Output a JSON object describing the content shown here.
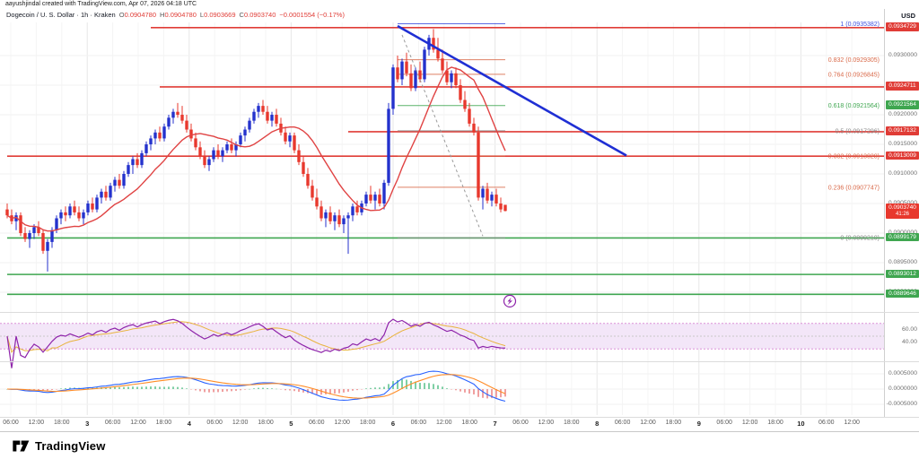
{
  "attribution": "aayushjindal created with TradingView.com, Apr 07, 2026 04:18 UTC",
  "legend": {
    "title": "Dogecoin / U. S. Dollar · 1h · Kraken",
    "ohlc": [
      {
        "k": "O",
        "v": "0.0904780"
      },
      {
        "k": "H",
        "v": "0.0904780"
      },
      {
        "k": "L",
        "v": "0.0903669"
      },
      {
        "k": "C",
        "v": "0.0903740"
      }
    ],
    "change": "−0.0001554 (−0.17%)"
  },
  "scale": {
    "currency": "USD"
  },
  "footer": {
    "brand": "TradingView"
  },
  "colors": {
    "up": "#2432cd",
    "down": "#e8382d",
    "ma": "#e04343",
    "trendline": "#1f2fd4",
    "resistance": "#e03c36",
    "support": "#3fa650",
    "rsi": "#8e24aa",
    "rsi_ma": "#e8b33c",
    "rsi_band_fill": "#f3e6f8",
    "rsi_band_edge": "#d069c8",
    "macd": "#2962ff",
    "macd_signal": "#ff8c26",
    "hist_up": "#7fcfa5",
    "hist_down": "#f0a0a0",
    "marker": "#8e24aa"
  },
  "chart_data": {
    "type": "candlestick",
    "title": "Dogecoin / U. S. Dollar",
    "interval": "1h",
    "exchange": "Kraken",
    "ohlc_format": [
      "open",
      "high",
      "low",
      "close"
    ],
    "candles": [
      [
        0.0904,
        0.0905,
        0.09025,
        0.0903
      ],
      [
        0.0903,
        0.0904,
        0.09015,
        0.0902
      ],
      [
        0.0902,
        0.09035,
        0.09005,
        0.0903
      ],
      [
        0.0903,
        0.09035,
        0.08995,
        0.09
      ],
      [
        0.09,
        0.0901,
        0.08985,
        0.0899
      ],
      [
        0.0899,
        0.09005,
        0.08975,
        0.09
      ],
      [
        0.09,
        0.09015,
        0.0899,
        0.0901
      ],
      [
        0.0901,
        0.0902,
        0.08995,
        0.09
      ],
      [
        0.09,
        0.09005,
        0.08965,
        0.0897
      ],
      [
        0.0897,
        0.0899,
        0.08935,
        0.08985
      ],
      [
        0.08985,
        0.0901,
        0.08975,
        0.09005
      ],
      [
        0.09005,
        0.0903,
        0.09,
        0.09025
      ],
      [
        0.09025,
        0.0904,
        0.09015,
        0.09035
      ],
      [
        0.09035,
        0.09045,
        0.0902,
        0.0903
      ],
      [
        0.0903,
        0.0905,
        0.09025,
        0.09045
      ],
      [
        0.09045,
        0.09055,
        0.0903,
        0.09035
      ],
      [
        0.09035,
        0.09045,
        0.0902,
        0.09025
      ],
      [
        0.09025,
        0.0904,
        0.09015,
        0.09035
      ],
      [
        0.09035,
        0.09055,
        0.0903,
        0.0905
      ],
      [
        0.0905,
        0.0906,
        0.09035,
        0.0904
      ],
      [
        0.0904,
        0.09065,
        0.09035,
        0.0906
      ],
      [
        0.0906,
        0.09075,
        0.0905,
        0.0907
      ],
      [
        0.0907,
        0.0908,
        0.09055,
        0.0906
      ],
      [
        0.0906,
        0.09085,
        0.09055,
        0.0908
      ],
      [
        0.0908,
        0.09095,
        0.0907,
        0.0909
      ],
      [
        0.0909,
        0.091,
        0.09075,
        0.0908
      ],
      [
        0.0908,
        0.09105,
        0.09075,
        0.091
      ],
      [
        0.091,
        0.0912,
        0.09095,
        0.09115
      ],
      [
        0.09115,
        0.0913,
        0.091,
        0.09125
      ],
      [
        0.09125,
        0.09135,
        0.0911,
        0.09115
      ],
      [
        0.09115,
        0.0914,
        0.0911,
        0.09135
      ],
      [
        0.09135,
        0.09155,
        0.0913,
        0.0915
      ],
      [
        0.0915,
        0.09165,
        0.0914,
        0.0916
      ],
      [
        0.0916,
        0.09175,
        0.0915,
        0.0917
      ],
      [
        0.0917,
        0.0918,
        0.09155,
        0.0916
      ],
      [
        0.0916,
        0.09185,
        0.09155,
        0.0918
      ],
      [
        0.0918,
        0.092,
        0.09175,
        0.09195
      ],
      [
        0.09195,
        0.0921,
        0.09185,
        0.09205
      ],
      [
        0.09205,
        0.0922,
        0.09195,
        0.092
      ],
      [
        0.092,
        0.09215,
        0.09185,
        0.0919
      ],
      [
        0.0919,
        0.092,
        0.0917,
        0.09175
      ],
      [
        0.09175,
        0.09185,
        0.09155,
        0.0916
      ],
      [
        0.0916,
        0.0917,
        0.0914,
        0.09145
      ],
      [
        0.09145,
        0.09155,
        0.09125,
        0.0913
      ],
      [
        0.0913,
        0.0914,
        0.0911,
        0.09115
      ],
      [
        0.09115,
        0.0913,
        0.09105,
        0.09125
      ],
      [
        0.09125,
        0.09145,
        0.0912,
        0.0914
      ],
      [
        0.0914,
        0.0915,
        0.09125,
        0.0913
      ],
      [
        0.0913,
        0.09145,
        0.0912,
        0.0914
      ],
      [
        0.0914,
        0.09155,
        0.09135,
        0.0915
      ],
      [
        0.0915,
        0.0916,
        0.09135,
        0.0914
      ],
      [
        0.0914,
        0.09155,
        0.0913,
        0.0915
      ],
      [
        0.0915,
        0.0917,
        0.09145,
        0.09165
      ],
      [
        0.09165,
        0.0918,
        0.09155,
        0.09175
      ],
      [
        0.09175,
        0.09195,
        0.0917,
        0.0919
      ],
      [
        0.0919,
        0.0921,
        0.09185,
        0.09205
      ],
      [
        0.09205,
        0.0922,
        0.09195,
        0.09215
      ],
      [
        0.09215,
        0.09225,
        0.092,
        0.09205
      ],
      [
        0.09205,
        0.09215,
        0.09185,
        0.0919
      ],
      [
        0.0919,
        0.09205,
        0.0918,
        0.092
      ],
      [
        0.092,
        0.0921,
        0.0918,
        0.09185
      ],
      [
        0.09185,
        0.09195,
        0.09165,
        0.0917
      ],
      [
        0.0917,
        0.0918,
        0.0915,
        0.09155
      ],
      [
        0.09155,
        0.0917,
        0.09145,
        0.09165
      ],
      [
        0.09165,
        0.0917,
        0.09135,
        0.0914
      ],
      [
        0.0914,
        0.0915,
        0.09115,
        0.0912
      ],
      [
        0.0912,
        0.0913,
        0.09095,
        0.091
      ],
      [
        0.091,
        0.0911,
        0.09075,
        0.0908
      ],
      [
        0.0908,
        0.0909,
        0.09055,
        0.0906
      ],
      [
        0.0906,
        0.09075,
        0.0904,
        0.09045
      ],
      [
        0.09045,
        0.09055,
        0.0902,
        0.09025
      ],
      [
        0.09025,
        0.0904,
        0.0901,
        0.09035
      ],
      [
        0.09035,
        0.09045,
        0.09015,
        0.0902
      ],
      [
        0.0902,
        0.09035,
        0.09005,
        0.0903
      ],
      [
        0.0903,
        0.0904,
        0.0901,
        0.09015
      ],
      [
        0.09015,
        0.0903,
        0.09,
        0.09025
      ],
      [
        0.09025,
        0.09035,
        0.08965,
        0.0903
      ],
      [
        0.0903,
        0.0905,
        0.0902,
        0.09045
      ],
      [
        0.09045,
        0.09055,
        0.0903,
        0.09035
      ],
      [
        0.09035,
        0.09055,
        0.0903,
        0.0905
      ],
      [
        0.0905,
        0.0907,
        0.09045,
        0.09065
      ],
      [
        0.09065,
        0.0908,
        0.0905,
        0.09055
      ],
      [
        0.09055,
        0.0907,
        0.0904,
        0.09065
      ],
      [
        0.09065,
        0.09075,
        0.09045,
        0.0905
      ],
      [
        0.0905,
        0.0909,
        0.0904,
        0.09085
      ],
      [
        0.09085,
        0.0922,
        0.0908,
        0.0921
      ],
      [
        0.0921,
        0.09285,
        0.092,
        0.0928
      ],
      [
        0.0928,
        0.093,
        0.09255,
        0.0926
      ],
      [
        0.0926,
        0.09295,
        0.0925,
        0.0929
      ],
      [
        0.0929,
        0.09305,
        0.09265,
        0.0927
      ],
      [
        0.0927,
        0.09285,
        0.0924,
        0.09245
      ],
      [
        0.09245,
        0.0928,
        0.0924,
        0.09275
      ],
      [
        0.09275,
        0.0929,
        0.09255,
        0.0926
      ],
      [
        0.0926,
        0.09315,
        0.09255,
        0.0931
      ],
      [
        0.0931,
        0.09335,
        0.093,
        0.0933
      ],
      [
        0.0933,
        0.09345,
        0.09305,
        0.0931
      ],
      [
        0.0931,
        0.0933,
        0.0929,
        0.09295
      ],
      [
        0.09295,
        0.0931,
        0.0927,
        0.09275
      ],
      [
        0.09275,
        0.0929,
        0.0925,
        0.09255
      ],
      [
        0.09255,
        0.09275,
        0.09245,
        0.0927
      ],
      [
        0.0927,
        0.0928,
        0.09245,
        0.0925
      ],
      [
        0.0925,
        0.0926,
        0.0922,
        0.09225
      ],
      [
        0.09225,
        0.0924,
        0.09205,
        0.0921
      ],
      [
        0.0921,
        0.0922,
        0.0918,
        0.09185
      ],
      [
        0.09185,
        0.09195,
        0.09165,
        0.0917
      ],
      [
        0.0917,
        0.0918,
        0.09055,
        0.0906
      ],
      [
        0.0906,
        0.0908,
        0.0904,
        0.09075
      ],
      [
        0.09075,
        0.09085,
        0.0905,
        0.09055
      ],
      [
        0.09055,
        0.0907,
        0.09045,
        0.09065
      ],
      [
        0.09065,
        0.09075,
        0.09045,
        0.0905
      ],
      [
        0.0905,
        0.0906,
        0.09035,
        0.0904
      ],
      [
        0.090478,
        0.090478,
        0.0903669,
        0.090374
      ]
    ],
    "price_axis": {
      "min": 0.088712,
      "max": 0.093561,
      "ticks": [
        "0.0930000",
        "0.0925000",
        "0.0920000",
        "0.0915000",
        "0.0910000",
        "0.0905000",
        "0.0900000",
        "0.0895000",
        "0.0890000"
      ]
    },
    "time_axis_labels": [
      "06:00",
      "12:00",
      "18:00",
      "3",
      "06:00",
      "12:00",
      "18:00",
      "4",
      "06:00",
      "12:00",
      "18:00",
      "5",
      "06:00",
      "12:00",
      "18:00",
      "6",
      "06:00",
      "12:00",
      "18:00",
      "7",
      "06:00",
      "12:00",
      "18:00",
      "8",
      "06:00",
      "12:00",
      "18:00",
      "9",
      "06:00",
      "12:00",
      "18:00",
      "10",
      "06:00",
      "12:00"
    ],
    "overlays": {
      "ma_period": 14,
      "fib_range": [
        87,
        111
      ],
      "fib_levels": [
        {
          "label": "1 (0.0935382)",
          "value": 0.0935382,
          "color": "#3f51e0"
        },
        {
          "label": "0.832 (0.0929305)",
          "value": 0.0929305,
          "color": "#d96a4a"
        },
        {
          "label": "0.764 (0.0926845)",
          "value": 0.0926845,
          "color": "#d96a4a"
        },
        {
          "label": "0.618 (0.0921564)",
          "value": 0.0921564,
          "color": "#3fa650"
        },
        {
          "label": "0.5 (0.0917296)",
          "value": 0.0917296,
          "color": "#8a8a8a"
        },
        {
          "label": "0.382 (0.0913028)",
          "value": 0.0913028,
          "color": "#d96a4a"
        },
        {
          "label": "0.236 (0.0907747)",
          "value": 0.0907747,
          "color": "#d96a4a"
        },
        {
          "label": "0 (0.0899210)",
          "value": 0.089921,
          "color": "#8a8a8a"
        }
      ],
      "hlines": [
        {
          "price": 0.0934729,
          "color": "#e03c36",
          "from_index": 32
        },
        {
          "price": 0.0924711,
          "color": "#e03c36",
          "from_index": 34
        },
        {
          "price": 0.0917132,
          "color": "#e03c36",
          "from_index": 76
        },
        {
          "price": 0.0913009,
          "color": "#e03c36",
          "from_index": 0
        },
        {
          "price": 0.0899179,
          "color": "#3fa650",
          "from_index": 0
        },
        {
          "price": 0.0893012,
          "color": "#3fa650",
          "from_index": 0
        },
        {
          "price": 0.0889646,
          "color": "#3fa650",
          "from_index": 0
        }
      ],
      "trendline": {
        "from_index": 87,
        "from_price": 0.0935,
        "to_index": 138,
        "to_price": 0.09131
      },
      "dashed_guide": {
        "from_index": 88,
        "from_price": 0.09335,
        "to_index": 106,
        "to_price": 0.08995
      },
      "marker": {
        "index": 112,
        "price": 0.08885,
        "icon": "lightning-icon"
      }
    },
    "indicators": {
      "rsi": {
        "period": 14,
        "band": [
          30,
          70
        ],
        "range": [
          15,
          85
        ],
        "ticks": [
          {
            "label": "60.00",
            "value": 60
          },
          {
            "label": "40.00",
            "value": 40
          }
        ]
      },
      "macd": {
        "fast": 12,
        "slow": 26,
        "signal": 9,
        "range": [
          -0.00085,
          0.00085
        ],
        "ticks": [
          {
            "label": "0.0005000",
            "value": 0.0005
          },
          {
            "label": "0.0000000",
            "value": 0
          },
          {
            "label": "-0.0005000",
            "value": -0.0005
          }
        ]
      }
    },
    "price_tags": [
      {
        "text": "0.0934729",
        "price": 0.0934729,
        "color": "#e03c36"
      },
      {
        "text": "0.0924711",
        "price": 0.0924711,
        "color": "#e03c36"
      },
      {
        "text": "0.0921564",
        "price": 0.0921564,
        "color": "#3fa650"
      },
      {
        "text": "0.0917132",
        "price": 0.0917132,
        "color": "#e03c36"
      },
      {
        "text": "0.0913009",
        "price": 0.0913009,
        "color": "#e03c36"
      },
      {
        "text": "0.0903740",
        "price": 0.090374,
        "color": "#e8382d",
        "countdown": "41:26",
        "current": true
      },
      {
        "text": "0.0899179",
        "price": 0.0899179,
        "color": "#3fa650"
      },
      {
        "text": "0.0893012",
        "price": 0.0893012,
        "color": "#3fa650"
      },
      {
        "text": "0.0889646",
        "price": 0.0889646,
        "color": "#3fa650"
      }
    ]
  }
}
